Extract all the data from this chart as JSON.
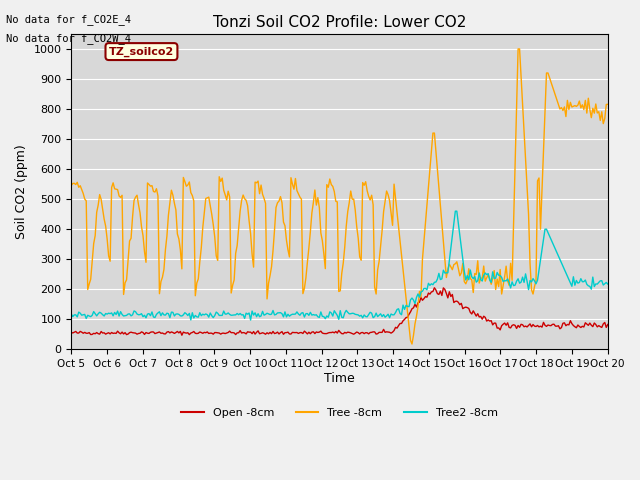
{
  "title": "Tonzi Soil CO2 Profile: Lower CO2",
  "xlabel": "Time",
  "ylabel": "Soil CO2 (ppm)",
  "ylim": [
    0,
    1050
  ],
  "yticks": [
    0,
    100,
    200,
    300,
    400,
    500,
    600,
    700,
    800,
    900,
    1000
  ],
  "x_tick_labels": [
    "Oct 5",
    "Oct 6",
    "Oct 7",
    "Oct 8",
    "Oct 9",
    "Oct 10",
    "Oct 11",
    "Oct 12",
    "Oct 13",
    "Oct 14",
    "Oct 15",
    "Oct 16",
    "Oct 17",
    "Oct 18",
    "Oct 19",
    "Oct 20"
  ],
  "no_data_text1": "No data for f_CO2E_4",
  "no_data_text2": "No data for f_CO2W_4",
  "legend_label_box": "TZ_soilco2",
  "colors": {
    "open": "#cc0000",
    "tree": "#ffa500",
    "tree2": "#00cccc"
  },
  "legend_labels": [
    "Open -8cm",
    "Tree -8cm",
    "Tree2 -8cm"
  ],
  "background_color": "#f0f0f0",
  "plot_bg": "#d8d8d8"
}
